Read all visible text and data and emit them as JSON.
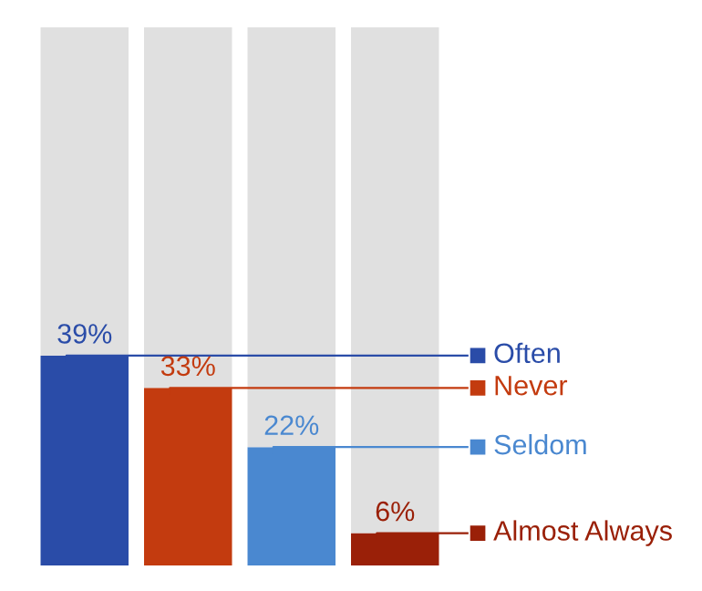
{
  "chart_data": {
    "type": "bar",
    "stacked": true,
    "categories": [
      null,
      null,
      null,
      null
    ],
    "ylim": [
      0,
      100
    ],
    "tick_labels": false,
    "legend": "right",
    "series": [
      {
        "name": "Often",
        "color": "#2a4ca8",
        "values": [
          39,
          null,
          null,
          null
        ],
        "value_labels": [
          "39%",
          null,
          null,
          null
        ]
      },
      {
        "name": "Never",
        "color": "#c33b0f",
        "values": [
          null,
          33,
          null,
          null
        ],
        "value_labels": [
          null,
          "33%",
          null,
          null
        ]
      },
      {
        "name": "Seldom",
        "color": "#4a88d0",
        "values": [
          null,
          null,
          22,
          null
        ],
        "value_labels": [
          null,
          null,
          "22%",
          null
        ]
      },
      {
        "name": "Almost Always",
        "color": "#9a2008",
        "values": [
          null,
          null,
          null,
          6
        ],
        "value_labels": [
          null,
          null,
          null,
          "6%"
        ]
      },
      {
        "color": "#e0e0e0",
        "values": [
          61,
          67,
          78,
          94
        ]
      }
    ]
  }
}
